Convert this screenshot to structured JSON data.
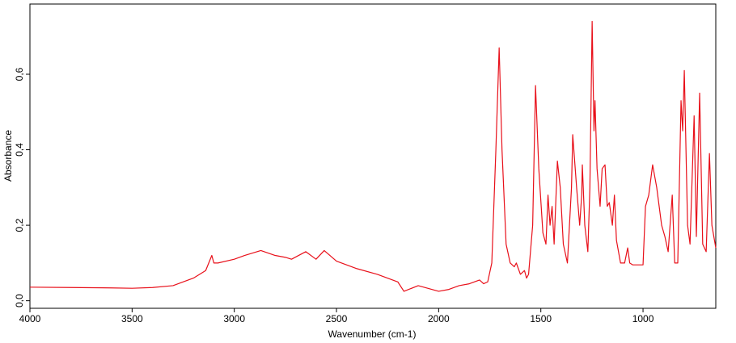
{
  "chart_data": {
    "type": "line",
    "xlabel": "Wavenumber (cm-1)",
    "ylabel": "Absorbance",
    "xlim": [
      4000,
      644
    ],
    "ylim": [
      -0.02,
      0.786
    ],
    "xticks": [
      4000,
      3500,
      3000,
      2500,
      2000,
      1500,
      1000
    ],
    "yticks": [
      {
        "value": 0,
        "label": "0,0"
      },
      {
        "value": 0.2,
        "label": "0,2"
      },
      {
        "value": 0.4,
        "label": "0,4"
      },
      {
        "value": 0.6,
        "label": "0,6"
      }
    ],
    "x": [
      4000,
      3800,
      3600,
      3500,
      3400,
      3300,
      3200,
      3140,
      3110,
      3100,
      3080,
      3000,
      2950,
      2870,
      2800,
      2750,
      2720,
      2650,
      2600,
      2560,
      2500,
      2400,
      2300,
      2200,
      2170,
      2100,
      2000,
      1950,
      1900,
      1850,
      1800,
      1780,
      1760,
      1740,
      1720,
      1704,
      1690,
      1670,
      1650,
      1630,
      1620,
      1600,
      1580,
      1570,
      1560,
      1540,
      1526,
      1510,
      1490,
      1475,
      1465,
      1455,
      1445,
      1435,
      1419,
      1405,
      1390,
      1370,
      1360,
      1350,
      1344,
      1325,
      1310,
      1300,
      1297,
      1285,
      1270,
      1260,
      1249,
      1240,
      1235,
      1225,
      1210,
      1200,
      1186,
      1175,
      1165,
      1150,
      1140,
      1130,
      1110,
      1090,
      1075,
      1065,
      1050,
      1000,
      988,
      972,
      953,
      933,
      909,
      893,
      877,
      857,
      845,
      830,
      814,
      806,
      798,
      782,
      770,
      750,
      739,
      723,
      708,
      691,
      675,
      663,
      644
    ],
    "series": [
      {
        "color": "#e8101a",
        "values": [
          0.036,
          0.035,
          0.034,
          0.033,
          0.035,
          0.04,
          0.06,
          0.08,
          0.12,
          0.1,
          0.1,
          0.11,
          0.12,
          0.133,
          0.12,
          0.115,
          0.11,
          0.13,
          0.11,
          0.133,
          0.105,
          0.085,
          0.07,
          0.05,
          0.025,
          0.04,
          0.025,
          0.03,
          0.04,
          0.045,
          0.055,
          0.045,
          0.05,
          0.1,
          0.4,
          0.67,
          0.4,
          0.15,
          0.1,
          0.09,
          0.1,
          0.07,
          0.08,
          0.06,
          0.07,
          0.2,
          0.57,
          0.35,
          0.18,
          0.15,
          0.28,
          0.2,
          0.25,
          0.15,
          0.37,
          0.3,
          0.15,
          0.1,
          0.2,
          0.3,
          0.44,
          0.3,
          0.2,
          0.28,
          0.36,
          0.2,
          0.13,
          0.3,
          0.74,
          0.45,
          0.53,
          0.35,
          0.25,
          0.35,
          0.36,
          0.25,
          0.26,
          0.2,
          0.28,
          0.16,
          0.1,
          0.1,
          0.14,
          0.1,
          0.095,
          0.095,
          0.25,
          0.28,
          0.36,
          0.3,
          0.2,
          0.17,
          0.13,
          0.28,
          0.1,
          0.1,
          0.53,
          0.45,
          0.61,
          0.2,
          0.15,
          0.49,
          0.17,
          0.55,
          0.15,
          0.13,
          0.39,
          0.2,
          0.14
        ]
      }
    ]
  }
}
